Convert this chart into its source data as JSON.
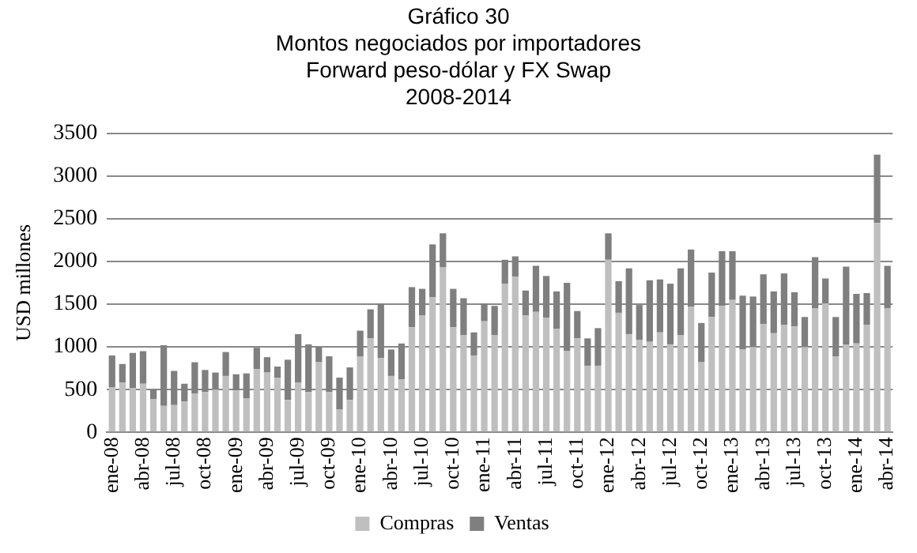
{
  "chart_data": {
    "type": "bar",
    "title": "Gráfico 30\nMontos negociados por importadores",
    "subtitle": "Forward peso-dólar y FX Swap\n2008-2014",
    "ylabel": "USD millones",
    "categories": [
      "ene-08",
      null,
      null,
      "abr-08",
      null,
      null,
      "jul-08",
      null,
      null,
      "oct-08",
      null,
      null,
      "ene-09",
      null,
      null,
      "abr-09",
      null,
      null,
      "jul-09",
      null,
      null,
      "oct-09",
      null,
      null,
      "ene-10",
      null,
      null,
      "abr-10",
      null,
      null,
      "jul-10",
      null,
      null,
      "oct-10",
      null,
      null,
      "ene-11",
      null,
      null,
      "abr-11",
      null,
      null,
      "jul-11",
      null,
      null,
      "oct-11",
      null,
      null,
      "ene-12",
      null,
      null,
      "abr-12",
      null,
      null,
      "jul-12",
      null,
      null,
      "oct-12",
      null,
      null,
      "ene-13",
      null,
      null,
      "abr-13",
      null,
      null,
      "jul-13",
      null,
      null,
      "oct-13",
      null,
      null,
      "ene-14",
      null,
      null,
      "abr-14"
    ],
    "stacked": true,
    "series": [
      {
        "name": "Compras",
        "color": "#bfbfbf",
        "values": [
          530,
          580,
          520,
          570,
          390,
          310,
          320,
          360,
          450,
          470,
          500,
          660,
          490,
          400,
          740,
          700,
          640,
          380,
          580,
          470,
          820,
          470,
          270,
          380,
          890,
          1100,
          870,
          660,
          620,
          1230,
          1370,
          1580,
          1930,
          1230,
          1140,
          900,
          1300,
          1140,
          1740,
          1820,
          1370,
          1410,
          1340,
          1210,
          950,
          1100,
          780,
          780,
          2020,
          1400,
          1150,
          1080,
          1060,
          1170,
          1030,
          1140,
          1470,
          820,
          1350,
          1480,
          1550,
          970,
          1000,
          1270,
          1160,
          1260,
          1240,
          1000,
          1450,
          1510,
          890,
          1030,
          1040,
          1260,
          2450,
          1450
        ]
      },
      {
        "name": "Ventas",
        "color": "#7f7f7f",
        "values": [
          370,
          220,
          410,
          380,
          110,
          710,
          400,
          210,
          370,
          260,
          200,
          280,
          190,
          290,
          250,
          180,
          130,
          470,
          570,
          560,
          180,
          420,
          370,
          380,
          300,
          340,
          640,
          310,
          420,
          470,
          310,
          620,
          400,
          450,
          430,
          270,
          210,
          340,
          280,
          240,
          290,
          540,
          490,
          440,
          800,
          320,
          320,
          440,
          310,
          370,
          770,
          410,
          720,
          620,
          710,
          780,
          670,
          460,
          520,
          640,
          570,
          630,
          590,
          580,
          490,
          600,
          400,
          350,
          600,
          290,
          460,
          910,
          580,
          370,
          800,
          500
        ]
      }
    ],
    "ylim": [
      0,
      3500
    ],
    "yticks": [
      0,
      500,
      1000,
      1500,
      2000,
      2500,
      3000,
      3500
    ],
    "grid": "y",
    "legend": "bottom"
  }
}
